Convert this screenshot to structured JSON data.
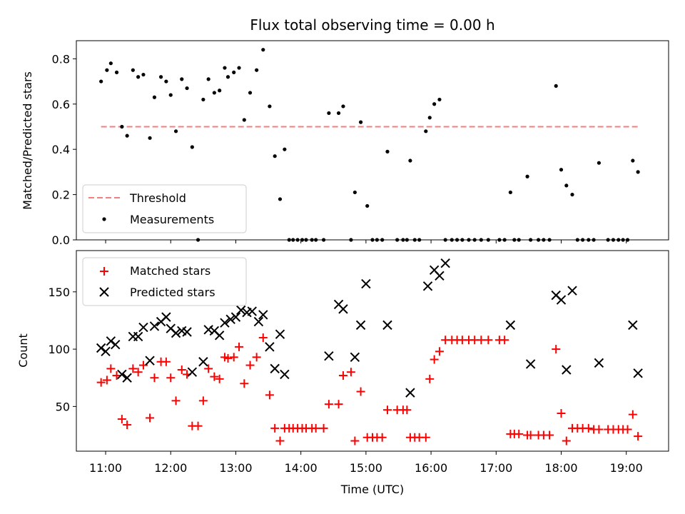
{
  "chart_data": [
    {
      "type": "scatter",
      "title": "Flux total observing time = 0.00 h",
      "xlabel": "",
      "ylabel": "Matched/Predicted stars",
      "xlim": [
        10.55,
        19.65
      ],
      "ylim": [
        0,
        0.88
      ],
      "yticks": [
        0.0,
        0.2,
        0.4,
        0.6,
        0.8
      ],
      "ytick_labels": [
        "0.0",
        "0.2",
        "0.4",
        "0.6",
        "0.8"
      ],
      "xticks": [
        11,
        12,
        13,
        14,
        15,
        16,
        17,
        18,
        19
      ],
      "legend": {
        "position": "lower-left",
        "entries": [
          "Threshold",
          "Measurements"
        ]
      },
      "threshold": {
        "name": "Threshold",
        "value": 0.5,
        "x_range": [
          10.93,
          19.2
        ],
        "color": "#f08080"
      },
      "series": [
        {
          "name": "Measurements",
          "color": "#000000",
          "marker": "dot",
          "x": [
            10.93,
            11.02,
            11.08,
            11.17,
            11.25,
            11.33,
            11.42,
            11.5,
            11.58,
            11.68,
            11.75,
            11.85,
            11.93,
            12.0,
            12.08,
            12.17,
            12.25,
            12.33,
            12.42,
            12.5,
            12.58,
            12.67,
            12.75,
            12.83,
            12.88,
            12.97,
            13.05,
            13.13,
            13.22,
            13.32,
            13.42,
            13.52,
            13.6,
            13.68,
            13.75,
            13.82,
            13.88,
            13.95,
            14.02,
            14.08,
            14.17,
            14.23,
            14.35,
            14.43,
            14.58,
            14.65,
            14.77,
            14.83,
            14.92,
            15.02,
            15.1,
            15.17,
            15.25,
            15.33,
            15.48,
            15.57,
            15.63,
            15.68,
            15.75,
            15.82,
            15.92,
            15.98,
            16.05,
            16.13,
            16.22,
            16.32,
            16.4,
            16.48,
            16.58,
            16.67,
            16.77,
            16.88,
            17.05,
            17.13,
            17.22,
            17.28,
            17.35,
            17.48,
            17.53,
            17.65,
            17.73,
            17.82,
            17.92,
            18.0,
            18.08,
            18.17,
            18.25,
            18.33,
            18.42,
            18.5,
            18.58,
            18.72,
            18.8,
            18.88,
            18.95,
            19.02,
            19.1,
            19.18
          ],
          "y": [
            0.7,
            0.75,
            0.78,
            0.74,
            0.5,
            0.46,
            0.75,
            0.72,
            0.73,
            0.45,
            0.63,
            0.72,
            0.7,
            0.64,
            0.48,
            0.71,
            0.67,
            0.41,
            0.0,
            0.62,
            0.71,
            0.65,
            0.66,
            0.76,
            0.72,
            0.74,
            0.76,
            0.53,
            0.65,
            0.75,
            0.84,
            0.59,
            0.37,
            0.18,
            0.4,
            0.0,
            0.0,
            0.0,
            0.0,
            0.0,
            0.0,
            0.0,
            0.0,
            0.56,
            0.56,
            0.59,
            0.0,
            0.21,
            0.52,
            0.15,
            0.0,
            0.0,
            0.0,
            0.39,
            0.0,
            0.0,
            0.0,
            0.35,
            0.0,
            0.0,
            0.48,
            0.54,
            0.6,
            0.62,
            0.0,
            0.0,
            0.0,
            0.0,
            0.0,
            0.0,
            0.0,
            0.0,
            0.0,
            0.0,
            0.21,
            0.0,
            0.0,
            0.28,
            0.0,
            0.0,
            0.0,
            0.0,
            0.68,
            0.31,
            0.24,
            0.2,
            0.0,
            0.0,
            0.0,
            0.0,
            0.34,
            0.0,
            0.0,
            0.0,
            0.0,
            0.0,
            0.35,
            0.3
          ]
        }
      ]
    },
    {
      "type": "scatter",
      "title": "",
      "xlabel": "Time (UTC)",
      "ylabel": "Count",
      "xlim": [
        10.55,
        19.65
      ],
      "ylim": [
        11,
        186
      ],
      "yticks": [
        50,
        100,
        150
      ],
      "ytick_labels": [
        "50",
        "100",
        "150"
      ],
      "xticks": [
        11,
        12,
        13,
        14,
        15,
        16,
        17,
        18,
        19
      ],
      "xtick_labels": [
        "11:00",
        "12:00",
        "13:00",
        "14:00",
        "15:00",
        "16:00",
        "17:00",
        "18:00",
        "19:00"
      ],
      "legend": {
        "position": "upper-left",
        "entries": [
          "Matched stars",
          "Predicted stars"
        ]
      },
      "series": [
        {
          "name": "Matched stars",
          "color": "#ff0000",
          "marker": "plus",
          "x": [
            10.93,
            11.02,
            11.08,
            11.17,
            11.25,
            11.33,
            11.42,
            11.5,
            11.58,
            11.68,
            11.75,
            11.85,
            11.93,
            12.0,
            12.08,
            12.17,
            12.25,
            12.33,
            12.42,
            12.5,
            12.58,
            12.67,
            12.75,
            12.83,
            12.88,
            12.97,
            13.05,
            13.13,
            13.22,
            13.32,
            13.42,
            13.52,
            13.6,
            13.68,
            13.75,
            13.82,
            13.88,
            13.95,
            14.02,
            14.08,
            14.17,
            14.23,
            14.35,
            14.43,
            14.58,
            14.65,
            14.77,
            14.83,
            14.92,
            15.02,
            15.1,
            15.17,
            15.25,
            15.33,
            15.48,
            15.57,
            15.63,
            15.68,
            15.75,
            15.82,
            15.92,
            15.98,
            16.05,
            16.13,
            16.22,
            16.32,
            16.4,
            16.48,
            16.58,
            16.67,
            16.77,
            16.88,
            17.05,
            17.13,
            17.22,
            17.28,
            17.35,
            17.48,
            17.53,
            17.65,
            17.73,
            17.82,
            17.92,
            18.0,
            18.08,
            18.17,
            18.25,
            18.33,
            18.42,
            18.5,
            18.58,
            18.72,
            18.8,
            18.88,
            18.95,
            19.02,
            19.1,
            19.18
          ],
          "y": [
            71,
            73,
            83,
            77,
            39,
            34,
            83,
            80,
            86,
            40,
            75,
            89,
            89,
            75,
            55,
            82,
            78,
            33,
            33,
            55,
            83,
            76,
            74,
            93,
            92,
            93,
            102,
            70,
            86,
            93,
            110,
            60,
            31,
            20,
            31,
            31,
            31,
            31,
            31,
            31,
            31,
            31,
            31,
            52,
            52,
            77,
            80,
            20,
            63,
            23,
            23,
            23,
            23,
            47,
            47,
            47,
            47,
            23,
            23,
            23,
            23,
            74,
            91,
            98,
            108,
            108,
            108,
            108,
            108,
            108,
            108,
            108,
            108,
            108,
            26,
            26,
            26,
            25,
            25,
            25,
            25,
            25,
            100,
            44,
            20,
            31,
            31,
            31,
            31,
            30,
            30,
            30,
            30,
            30,
            30,
            30,
            43,
            24
          ]
        },
        {
          "name": "Predicted stars",
          "color": "#000000",
          "marker": "x",
          "x": [
            10.93,
            11.0,
            11.08,
            11.15,
            11.25,
            11.33,
            11.42,
            11.5,
            11.58,
            11.68,
            11.75,
            11.85,
            11.93,
            12.0,
            12.08,
            12.17,
            12.25,
            12.33,
            12.5,
            12.58,
            12.67,
            12.75,
            12.83,
            12.92,
            13.0,
            13.08,
            13.17,
            13.25,
            13.35,
            13.42,
            13.52,
            13.6,
            13.68,
            13.75,
            14.43,
            14.58,
            14.65,
            14.83,
            14.92,
            15.0,
            15.33,
            15.68,
            15.95,
            16.05,
            16.13,
            16.22,
            17.22,
            17.53,
            17.92,
            18.0,
            18.08,
            18.17,
            18.58,
            19.1,
            19.18
          ],
          "y": [
            101,
            98,
            107,
            104,
            78,
            75,
            111,
            111,
            119,
            90,
            120,
            124,
            128,
            118,
            114,
            116,
            115,
            80,
            89,
            117,
            116,
            112,
            123,
            126,
            128,
            134,
            132,
            133,
            124,
            130,
            102,
            83,
            113,
            78,
            94,
            139,
            135,
            93,
            121,
            157,
            121,
            62,
            155,
            169,
            164,
            175,
            121,
            87,
            147,
            143,
            82,
            151,
            88,
            121,
            79
          ]
        }
      ]
    }
  ]
}
